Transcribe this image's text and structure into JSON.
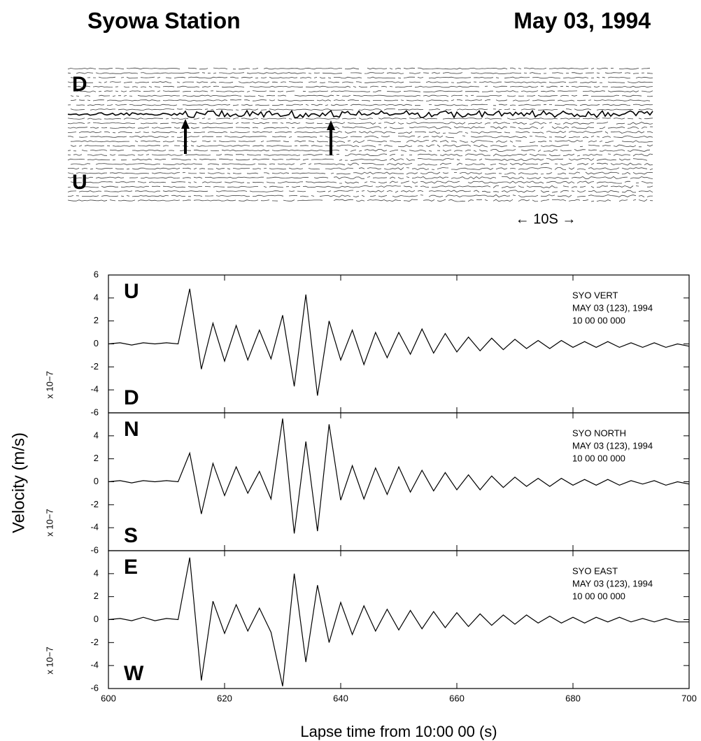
{
  "title": "Syowa Station",
  "date": "May 03, 1994",
  "drum_record": {
    "top_label": "D",
    "bottom_label": "U",
    "scale_label": "← 10S →"
  },
  "y_label": "Velocity (m/s)",
  "chart_data": [
    {
      "type": "line",
      "panel_top_label": "U",
      "panel_bottom_label": "D",
      "scale_label": "x 10−7",
      "annotation": [
        "SYO  VERT",
        "MAY 03 (123), 1994",
        "10 00 00 000"
      ],
      "xlim": [
        600,
        700
      ],
      "xticks": [
        600,
        620,
        640,
        660,
        680,
        700
      ],
      "ylim": [
        -6,
        6
      ],
      "yticks": [
        -6,
        -4,
        -2,
        0,
        2,
        4,
        6
      ],
      "x": [
        600,
        602,
        604,
        606,
        608,
        610,
        612,
        614,
        616,
        618,
        620,
        622,
        624,
        626,
        628,
        630,
        632,
        634,
        636,
        638,
        640,
        642,
        644,
        646,
        648,
        650,
        652,
        654,
        656,
        658,
        660,
        662,
        664,
        666,
        668,
        670,
        672,
        674,
        676,
        678,
        680,
        682,
        684,
        686,
        688,
        690,
        692,
        694,
        696,
        698,
        700
      ],
      "series": [
        {
          "color": "#000000",
          "values": [
            0,
            0.1,
            -0.1,
            0.1,
            0,
            0.1,
            0,
            4.8,
            -2.2,
            1.8,
            -1.5,
            1.6,
            -1.4,
            1.2,
            -1.3,
            2.5,
            -3.7,
            4.3,
            -4.5,
            2.0,
            -1.4,
            1.2,
            -1.8,
            1.0,
            -1.2,
            1.0,
            -0.9,
            1.3,
            -0.8,
            0.9,
            -0.7,
            0.6,
            -0.6,
            0.5,
            -0.5,
            0.4,
            -0.4,
            0.3,
            -0.4,
            0.3,
            -0.3,
            0.2,
            -0.3,
            0.2,
            -0.3,
            0.1,
            -0.3,
            0.1,
            -0.3,
            0,
            -0.2
          ]
        }
      ]
    },
    {
      "type": "line",
      "panel_top_label": "N",
      "panel_bottom_label": "S",
      "scale_label": "x 10−7",
      "annotation": [
        "SYO  NORTH",
        "MAY 03 (123), 1994",
        "10 00 00 000"
      ],
      "xlim": [
        600,
        700
      ],
      "xticks": [
        600,
        620,
        640,
        660,
        680,
        700
      ],
      "ylim": [
        -6,
        6
      ],
      "yticks": [
        -6,
        -4,
        -2,
        0,
        2,
        4
      ],
      "x": [
        600,
        602,
        604,
        606,
        608,
        610,
        612,
        614,
        616,
        618,
        620,
        622,
        624,
        626,
        628,
        630,
        632,
        634,
        636,
        638,
        640,
        642,
        644,
        646,
        648,
        650,
        652,
        654,
        656,
        658,
        660,
        662,
        664,
        666,
        668,
        670,
        672,
        674,
        676,
        678,
        680,
        682,
        684,
        686,
        688,
        690,
        692,
        694,
        696,
        698,
        700
      ],
      "series": [
        {
          "color": "#000000",
          "values": [
            0,
            0.1,
            -0.1,
            0.1,
            0,
            0.1,
            0,
            2.5,
            -2.8,
            1.6,
            -1.2,
            1.3,
            -1.0,
            0.9,
            -1.5,
            5.5,
            -4.5,
            3.5,
            -4.3,
            5.0,
            -1.6,
            1.4,
            -1.5,
            1.2,
            -1.1,
            1.3,
            -0.9,
            1.0,
            -0.8,
            0.8,
            -0.7,
            0.6,
            -0.7,
            0.5,
            -0.5,
            0.4,
            -0.4,
            0.3,
            -0.4,
            0.3,
            -0.3,
            0.2,
            -0.3,
            0.2,
            -0.3,
            0.1,
            -0.2,
            0.1,
            -0.3,
            0,
            -0.2
          ]
        }
      ]
    },
    {
      "type": "line",
      "panel_top_label": "E",
      "panel_bottom_label": "W",
      "scale_label": "x 10−7",
      "annotation": [
        "SYO  EAST",
        "MAY 03 (123), 1994",
        "10 00 00 000"
      ],
      "xlabel": "Lapse time from 10:00 00 (s)",
      "xlim": [
        600,
        700
      ],
      "xticks": [
        600,
        620,
        640,
        660,
        680,
        700
      ],
      "ylim": [
        -6,
        6
      ],
      "yticks": [
        -6,
        -4,
        -2,
        0,
        2,
        4
      ],
      "x": [
        600,
        602,
        604,
        606,
        608,
        610,
        612,
        614,
        616,
        618,
        620,
        622,
        624,
        626,
        628,
        630,
        632,
        634,
        636,
        638,
        640,
        642,
        644,
        646,
        648,
        650,
        652,
        654,
        656,
        658,
        660,
        662,
        664,
        666,
        668,
        670,
        672,
        674,
        676,
        678,
        680,
        682,
        684,
        686,
        688,
        690,
        692,
        694,
        696,
        698,
        700
      ],
      "series": [
        {
          "color": "#000000",
          "values": [
            0,
            0.1,
            -0.1,
            0.2,
            -0.1,
            0.1,
            0,
            5.4,
            -5.3,
            1.6,
            -1.2,
            1.3,
            -1.0,
            1.0,
            -1.1,
            -5.8,
            4.0,
            -3.7,
            3.0,
            -2.0,
            1.5,
            -1.3,
            1.2,
            -1.0,
            0.9,
            -0.9,
            0.8,
            -0.8,
            0.7,
            -0.7,
            0.6,
            -0.6,
            0.5,
            -0.5,
            0.4,
            -0.4,
            0.4,
            -0.3,
            0.3,
            -0.3,
            0.2,
            -0.3,
            0.2,
            -0.2,
            0.2,
            -0.2,
            0.1,
            -0.2,
            0.1,
            -0.2,
            -0.2
          ]
        }
      ]
    }
  ]
}
